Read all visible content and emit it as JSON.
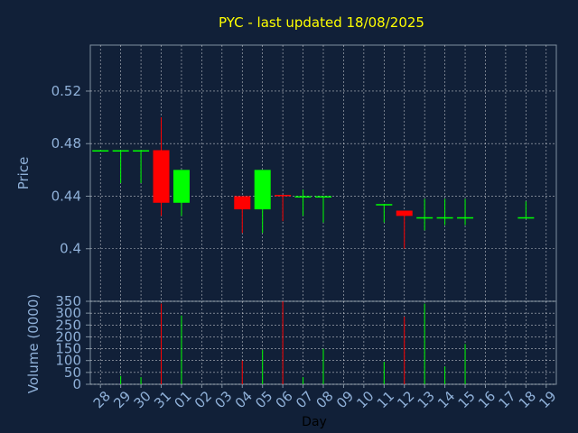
{
  "chart_data": [
    {
      "type": "candlestick",
      "title": "PYC - last updated 18/08/2025",
      "ylabel": "Price",
      "ylim": [
        0.36,
        0.555
      ],
      "yticks": [
        "0.4",
        "0.44",
        "0.48",
        "0.52"
      ],
      "ytick_values": [
        0.4,
        0.44,
        0.48,
        0.52
      ],
      "grid": true,
      "colors": {
        "up": "#00ff00",
        "down": "#ff0000",
        "background": "#112038",
        "grid": "#ffffff"
      },
      "days": [
        "28",
        "29",
        "30",
        "31",
        "01",
        "02",
        "03",
        "04",
        "05",
        "06",
        "07",
        "08",
        "09",
        "10",
        "11",
        "12",
        "13",
        "14",
        "15",
        "16",
        "17",
        "18",
        "19"
      ],
      "candles": [
        {
          "day": "28",
          "open": 0.475,
          "high": 0.475,
          "low": 0.475,
          "close": 0.475
        },
        {
          "day": "29",
          "open": 0.475,
          "high": 0.475,
          "low": 0.45,
          "close": 0.475
        },
        {
          "day": "30",
          "open": 0.475,
          "high": 0.475,
          "low": 0.45,
          "close": 0.475
        },
        {
          "day": "31",
          "open": 0.475,
          "high": 0.5,
          "low": 0.425,
          "close": 0.435
        },
        {
          "day": "01",
          "open": 0.435,
          "high": 0.46,
          "low": 0.425,
          "close": 0.46
        },
        {
          "day": "04",
          "open": 0.44,
          "high": 0.44,
          "low": 0.412,
          "close": 0.43
        },
        {
          "day": "05",
          "open": 0.43,
          "high": 0.46,
          "low": 0.412,
          "close": 0.46
        },
        {
          "day": "06",
          "open": 0.441,
          "high": 0.441,
          "low": 0.421,
          "close": 0.44
        },
        {
          "day": "07",
          "open": 0.44,
          "high": 0.445,
          "low": 0.425,
          "close": 0.44
        },
        {
          "day": "08",
          "open": 0.44,
          "high": 0.44,
          "low": 0.42,
          "close": 0.44
        },
        {
          "day": "11",
          "open": 0.434,
          "high": 0.434,
          "low": 0.42,
          "close": 0.434
        },
        {
          "day": "12",
          "open": 0.429,
          "high": 0.429,
          "low": 0.4,
          "close": 0.425
        },
        {
          "day": "13",
          "open": 0.424,
          "high": 0.438,
          "low": 0.414,
          "close": 0.424
        },
        {
          "day": "14",
          "open": 0.424,
          "high": 0.438,
          "low": 0.418,
          "close": 0.424
        },
        {
          "day": "15",
          "open": 0.424,
          "high": 0.438,
          "low": 0.418,
          "close": 0.424
        },
        {
          "day": "18",
          "open": 0.424,
          "high": 0.436,
          "low": 0.424,
          "close": 0.424
        }
      ]
    },
    {
      "type": "bar",
      "ylabel": "Volume (0000)",
      "xlabel": "Day",
      "ylim": [
        0,
        350
      ],
      "yticks": [
        "0",
        "50",
        "100",
        "150",
        "200",
        "250",
        "300",
        "350"
      ],
      "ytick_values": [
        0,
        50,
        100,
        150,
        200,
        250,
        300,
        350
      ],
      "grid": true,
      "volumes": [
        {
          "day": "28",
          "value": 0,
          "dir": "up"
        },
        {
          "day": "29",
          "value": 35,
          "dir": "up"
        },
        {
          "day": "30",
          "value": 30,
          "dir": "up"
        },
        {
          "day": "31",
          "value": 340,
          "dir": "down"
        },
        {
          "day": "01",
          "value": 290,
          "dir": "up"
        },
        {
          "day": "04",
          "value": 100,
          "dir": "down"
        },
        {
          "day": "05",
          "value": 145,
          "dir": "up"
        },
        {
          "day": "06",
          "value": 350,
          "dir": "down"
        },
        {
          "day": "07",
          "value": 30,
          "dir": "up"
        },
        {
          "day": "08",
          "value": 150,
          "dir": "up"
        },
        {
          "day": "11",
          "value": 95,
          "dir": "up"
        },
        {
          "day": "12",
          "value": 285,
          "dir": "down"
        },
        {
          "day": "13",
          "value": 340,
          "dir": "up"
        },
        {
          "day": "14",
          "value": 75,
          "dir": "up"
        },
        {
          "day": "15",
          "value": 170,
          "dir": "up"
        },
        {
          "day": "18",
          "value": 0,
          "dir": "up"
        }
      ]
    }
  ]
}
